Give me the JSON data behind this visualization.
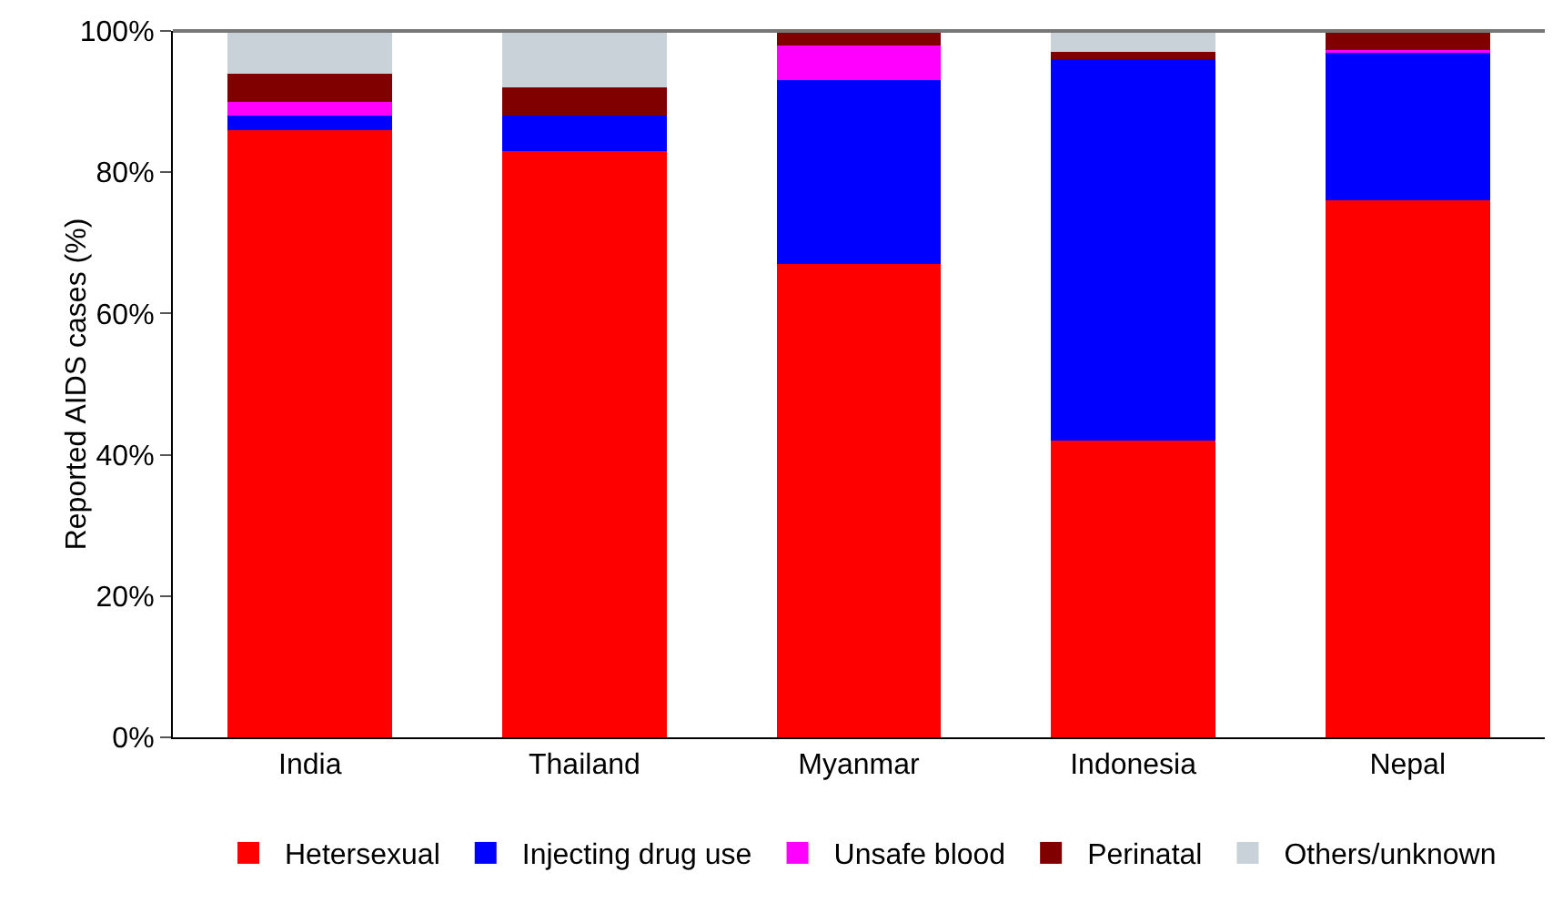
{
  "chart_data": {
    "type": "bar",
    "stacked": true,
    "ylabel": "Reported AIDS cases (%)",
    "categories": [
      "India",
      "Thailand",
      "Myanmar",
      "Indonesia",
      "Nepal"
    ],
    "series": [
      {
        "name": "Hetersexual",
        "color": "#ff0000",
        "values": [
          86,
          83,
          67,
          42,
          76
        ]
      },
      {
        "name": "Injecting drug use",
        "color": "#0000ff",
        "values": [
          2,
          5,
          26,
          54,
          21
        ]
      },
      {
        "name": "Unsafe blood",
        "color": "#ff00ff",
        "values": [
          2,
          0,
          5,
          0,
          0.3
        ]
      },
      {
        "name": "Perinatal",
        "color": "#800000",
        "values": [
          4,
          4,
          2,
          1,
          2.7
        ]
      },
      {
        "name": "Others/unknown",
        "color": "#c8d2d8",
        "values": [
          6,
          8,
          0,
          3,
          0
        ]
      }
    ],
    "ylim": [
      0,
      100
    ],
    "yticks": [
      {
        "value": 0,
        "label": "0%"
      },
      {
        "value": 20,
        "label": "20%"
      },
      {
        "value": 40,
        "label": "40%"
      },
      {
        "value": 60,
        "label": "60%"
      },
      {
        "value": 80,
        "label": "80%"
      },
      {
        "value": 100,
        "label": "100%"
      }
    ],
    "grid": false,
    "legend": "bottom"
  }
}
